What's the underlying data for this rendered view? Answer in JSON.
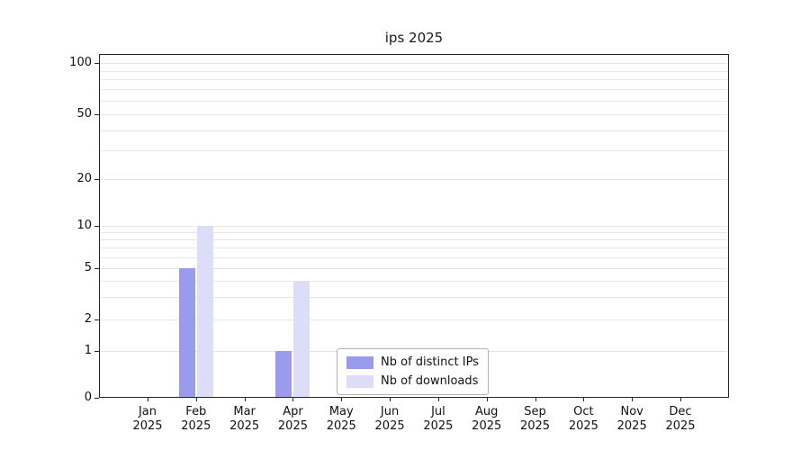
{
  "chart_data": {
    "type": "bar",
    "title": "ips 2025",
    "categories": [
      "Jan",
      "Feb",
      "Mar",
      "Apr",
      "May",
      "Jun",
      "Jul",
      "Aug",
      "Sep",
      "Oct",
      "Nov",
      "Dec"
    ],
    "year_label": "2025",
    "series": [
      {
        "name": "Nb of distinct IPs",
        "color": "#9b9bed",
        "values": [
          0,
          5,
          0,
          1,
          0,
          0,
          0,
          0,
          0,
          0,
          0,
          0
        ]
      },
      {
        "name": "Nb of downloads",
        "color": "#dcddf9",
        "values": [
          0,
          10,
          0,
          4,
          0,
          0,
          0,
          0,
          0,
          0,
          0,
          0
        ]
      }
    ],
    "yticks": [
      0,
      1,
      2,
      5,
      10,
      20,
      50,
      100
    ],
    "ylim": [
      0,
      100
    ],
    "scale": "log-like",
    "grid": true,
    "grid_minor_values": [
      1,
      2,
      3,
      4,
      5,
      6,
      7,
      8,
      9,
      10,
      20,
      30,
      40,
      50,
      60,
      70,
      80,
      90,
      100
    ],
    "legend_position": "lower center",
    "colors": {
      "grid": "#e7e7e7",
      "axis": "#262626",
      "text": "#111111",
      "background": "#ffffff"
    }
  }
}
